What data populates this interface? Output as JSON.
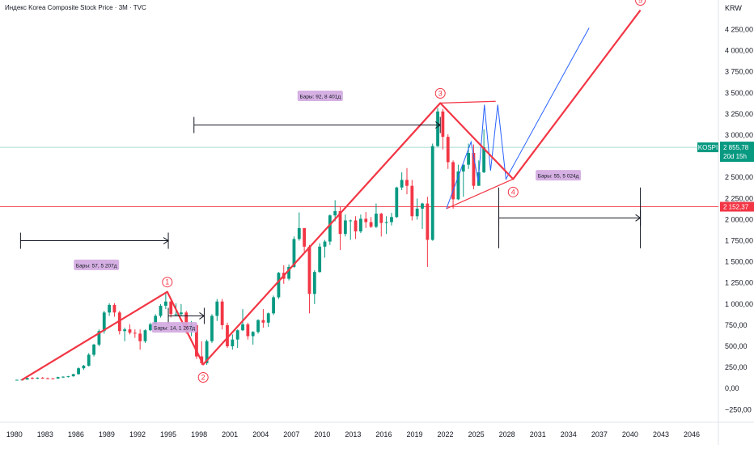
{
  "title": "Индекс Korea Composite Stock Price · 3M · TVC",
  "currency": "KRW",
  "colors": {
    "up": "#089981",
    "down": "#f23645",
    "wave_line": "#f23645",
    "projection": "#2962ff",
    "measure": "#131722",
    "note_bg": "#d1a7e0",
    "price_tag": "#089981",
    "level_tag": "#f23645",
    "symbol_tag": "#089981"
  },
  "chart_data": {
    "type": "candlestick",
    "x_axis": {
      "range": [
        1978.6,
        2048.6
      ],
      "ticks": [
        "1980",
        "1983",
        "1986",
        "1989",
        "1992",
        "1995",
        "1998",
        "2001",
        "2004",
        "2007",
        "2010",
        "2013",
        "2016",
        "2019",
        "2022",
        "2025",
        "2028",
        "2031",
        "2034",
        "2037",
        "2040",
        "2043",
        "2046"
      ]
    },
    "y_axis": {
      "range": [
        -400,
        4600
      ],
      "ticks": [
        "4 250,00",
        "4 000,00",
        "3 750,00",
        "3 500,00",
        "3 250,00",
        "3 000,00",
        "2 750,00",
        "2 500,00",
        "2 250,00",
        "2 000,00",
        "1 750,00",
        "1 500,00",
        "1 250,00",
        "1 000,00",
        "750,00",
        "500,00",
        "250,00",
        "0,00",
        "−250,00"
      ],
      "tick_values": [
        4250,
        4000,
        3750,
        3500,
        3250,
        3000,
        2750,
        2500,
        2250,
        2000,
        1750,
        1500,
        1250,
        1000,
        750,
        500,
        250,
        0,
        -250
      ]
    },
    "candles": [
      [
        1980.25,
        100,
        105,
        98,
        103
      ],
      [
        1980.75,
        103,
        110,
        100,
        106
      ],
      [
        1981.25,
        106,
        130,
        104,
        125
      ],
      [
        1981.75,
        125,
        135,
        110,
        118
      ],
      [
        1982.25,
        118,
        132,
        112,
        128
      ],
      [
        1982.75,
        128,
        135,
        115,
        121
      ],
      [
        1983.25,
        121,
        130,
        115,
        120
      ],
      [
        1983.75,
        120,
        125,
        112,
        118
      ],
      [
        1984.25,
        118,
        140,
        116,
        135
      ],
      [
        1984.75,
        135,
        145,
        125,
        140
      ],
      [
        1985.25,
        140,
        150,
        130,
        145
      ],
      [
        1985.75,
        145,
        175,
        140,
        170
      ],
      [
        1986.25,
        170,
        250,
        165,
        240
      ],
      [
        1986.75,
        240,
        280,
        220,
        270
      ],
      [
        1987.25,
        270,
        420,
        260,
        400
      ],
      [
        1987.75,
        400,
        530,
        380,
        520
      ],
      [
        1988.25,
        520,
        700,
        500,
        680
      ],
      [
        1988.75,
        680,
        920,
        650,
        900
      ],
      [
        1989.25,
        900,
        1010,
        860,
        990
      ],
      [
        1989.75,
        990,
        1010,
        850,
        900
      ],
      [
        1990.25,
        900,
        920,
        640,
        680
      ],
      [
        1990.75,
        680,
        720,
        560,
        700
      ],
      [
        1991.25,
        700,
        760,
        640,
        660
      ],
      [
        1991.75,
        660,
        700,
        600,
        650
      ],
      [
        1992.25,
        650,
        700,
        460,
        560
      ],
      [
        1992.75,
        560,
        700,
        540,
        690
      ],
      [
        1993.25,
        690,
        780,
        680,
        760
      ],
      [
        1993.75,
        760,
        880,
        740,
        860
      ],
      [
        1994.25,
        860,
        1000,
        840,
        980
      ],
      [
        1994.75,
        980,
        1145,
        940,
        1030
      ],
      [
        1995.25,
        1030,
        1040,
        840,
        880
      ],
      [
        1995.75,
        880,
        1010,
        860,
        880
      ],
      [
        1996.25,
        880,
        1000,
        860,
        900
      ],
      [
        1996.75,
        900,
        920,
        650,
        680
      ],
      [
        1997.25,
        680,
        800,
        620,
        750
      ],
      [
        1997.75,
        750,
        770,
        350,
        380
      ],
      [
        1998.25,
        380,
        560,
        280,
        300
      ],
      [
        1998.75,
        300,
        580,
        280,
        560
      ],
      [
        1999.25,
        560,
        880,
        540,
        860
      ],
      [
        1999.75,
        860,
        1060,
        800,
        1030
      ],
      [
        2000.25,
        1030,
        1060,
        700,
        750
      ],
      [
        2000.75,
        750,
        780,
        480,
        500
      ],
      [
        2001.25,
        500,
        640,
        460,
        580
      ],
      [
        2001.75,
        580,
        700,
        480,
        690
      ],
      [
        2002.25,
        690,
        940,
        680,
        760
      ],
      [
        2002.75,
        760,
        780,
        580,
        620
      ],
      [
        2003.25,
        620,
        680,
        520,
        670
      ],
      [
        2003.75,
        670,
        820,
        650,
        810
      ],
      [
        2004.25,
        810,
        940,
        720,
        780
      ],
      [
        2004.75,
        780,
        900,
        730,
        890
      ],
      [
        2005.25,
        890,
        1100,
        870,
        1080
      ],
      [
        2005.75,
        1080,
        1380,
        1060,
        1370
      ],
      [
        2006.25,
        1370,
        1460,
        1240,
        1300
      ],
      [
        2006.75,
        1300,
        1470,
        1280,
        1440
      ],
      [
        2007.25,
        1440,
        1800,
        1430,
        1770
      ],
      [
        2007.75,
        1770,
        2085,
        1750,
        1900
      ],
      [
        2008.25,
        1900,
        1900,
        1620,
        1680
      ],
      [
        2008.75,
        1680,
        1700,
        890,
        1120
      ],
      [
        2009.25,
        1120,
        1400,
        1000,
        1380
      ],
      [
        2009.75,
        1380,
        1720,
        1370,
        1680
      ],
      [
        2010.25,
        1680,
        1760,
        1550,
        1740
      ],
      [
        2010.75,
        1740,
        2060,
        1700,
        2050
      ],
      [
        2011.25,
        2050,
        2230,
        1980,
        2100
      ],
      [
        2011.75,
        2100,
        2150,
        1640,
        1830
      ],
      [
        2012.25,
        1830,
        2060,
        1800,
        1990
      ],
      [
        2012.75,
        1990,
        2000,
        1760,
        1990
      ],
      [
        2013.25,
        1990,
        2040,
        1770,
        1860
      ],
      [
        2013.75,
        1860,
        2060,
        1840,
        2010
      ],
      [
        2014.25,
        2010,
        2090,
        1900,
        1970
      ],
      [
        2014.75,
        1970,
        2030,
        1900,
        1915
      ],
      [
        2015.25,
        1915,
        2190,
        1900,
        2070
      ],
      [
        2015.75,
        2070,
        2080,
        1800,
        1960
      ],
      [
        2016.25,
        1960,
        2040,
        1830,
        1970
      ],
      [
        2016.75,
        1970,
        2080,
        1930,
        2030
      ],
      [
        2017.25,
        2030,
        2390,
        2020,
        2380
      ],
      [
        2017.75,
        2380,
        2560,
        2350,
        2470
      ],
      [
        2018.25,
        2470,
        2610,
        2300,
        2400
      ],
      [
        2018.75,
        2400,
        2470,
        1990,
        2040
      ],
      [
        2019.25,
        2040,
        2250,
        2000,
        2130
      ],
      [
        2019.75,
        2130,
        2200,
        1890,
        2190
      ],
      [
        2020.25,
        2190,
        2270,
        1440,
        1760
      ],
      [
        2020.75,
        1760,
        2900,
        1750,
        2870
      ],
      [
        2021.25,
        2870,
        3320,
        2860,
        3280
      ],
      [
        2021.75,
        3280,
        3310,
        2830,
        2980
      ],
      [
        2022.25,
        2980,
        3010,
        2600,
        2680
      ],
      [
        2022.75,
        2680,
        2700,
        2130,
        2240
      ],
      [
        2023.25,
        2240,
        2650,
        2230,
        2570
      ],
      [
        2023.75,
        2570,
        2640,
        2270,
        2650
      ],
      [
        2024.25,
        2650,
        2900,
        2600,
        2790
      ],
      [
        2024.75,
        2790,
        2890,
        2360,
        2400
      ],
      [
        2025.25,
        2400,
        2700,
        2400,
        2560
      ],
      [
        2025.75,
        2560,
        3070,
        2550,
        2856
      ]
    ],
    "wave_path": [
      [
        1980.7,
        100
      ],
      [
        1994.9,
        1145
      ],
      [
        1998.4,
        285
      ],
      [
        2021.5,
        3380
      ],
      [
        2028.6,
        2480
      ],
      [
        2041.0,
        4480
      ]
    ],
    "wave_labels": [
      {
        "label": "1",
        "x": 1994.9,
        "y": 1145
      },
      {
        "label": "2",
        "x": 1998.4,
        "y": 285
      },
      {
        "label": "3",
        "x": 2021.5,
        "y": 3380
      },
      {
        "label": "4",
        "x": 2028.6,
        "y": 2480
      },
      {
        "label": "5",
        "x": 2041.0,
        "y": 4480
      }
    ],
    "triangle_lines": [
      [
        [
          2021.5,
          3380
        ],
        [
          2026.9,
          3400
        ]
      ],
      [
        [
          2022.1,
          2130
        ],
        [
          2028.6,
          2480
        ]
      ]
    ],
    "projection_path": [
      [
        2022.1,
        2130
      ],
      [
        2024.5,
        2920
      ],
      [
        2025.2,
        2450
      ],
      [
        2025.8,
        3360
      ],
      [
        2026.4,
        2580
      ],
      [
        2027.1,
        3360
      ],
      [
        2027.9,
        2480
      ],
      [
        2036.0,
        4270
      ]
    ],
    "measure_lines": [
      {
        "from": [
          1980.6,
          1750
        ],
        "to": [
          1995.0,
          1750
        ],
        "note": "Бары: 57, 5 207д"
      },
      {
        "from": [
          1995.0,
          860
        ],
        "to": [
          1998.5,
          860
        ],
        "note": "Бары: 14, 1 267д"
      },
      {
        "from": [
          1997.5,
          3120
        ],
        "to": [
          2021.5,
          3120
        ],
        "note": "Бары: 92, 8 401д"
      },
      {
        "from": [
          2027.2,
          2020
        ],
        "to": [
          2041.0,
          2020
        ],
        "note": "Бары: 55, 5 024д"
      }
    ],
    "horizontal_levels": [
      {
        "value": 2152.37,
        "label": "2 152,37",
        "color": "#f23645"
      },
      {
        "value": 2855.78,
        "label": "",
        "color": "#089981"
      }
    ],
    "last_price": {
      "symbol": "KOSPI",
      "value": "2 855,78",
      "countdown": "20d 15h"
    }
  }
}
